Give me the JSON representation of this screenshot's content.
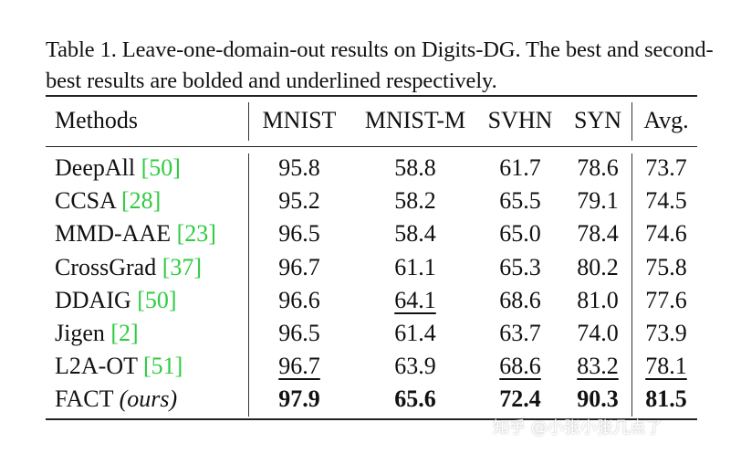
{
  "caption": "Table 1. Leave-one-domain-out results on Digits-DG. The best and second-best results are bolded and underlined respectively.",
  "table": {
    "headers": [
      "Methods",
      "MNIST",
      "MNIST-M",
      "SVHN",
      "SYN",
      "Avg."
    ],
    "rows": [
      {
        "method": "DeepAll",
        "cite": "[50]",
        "values": [
          "95.8",
          "58.8",
          "61.7",
          "78.6",
          "73.7"
        ],
        "styles": [
          "",
          "",
          "",
          "",
          ""
        ]
      },
      {
        "method": "CCSA",
        "cite": "[28]",
        "values": [
          "95.2",
          "58.2",
          "65.5",
          "79.1",
          "74.5"
        ],
        "styles": [
          "",
          "",
          "",
          "",
          ""
        ]
      },
      {
        "method": "MMD-AAE",
        "cite": "[23]",
        "values": [
          "96.5",
          "58.4",
          "65.0",
          "78.4",
          "74.6"
        ],
        "styles": [
          "",
          "",
          "",
          "",
          ""
        ]
      },
      {
        "method": "CrossGrad",
        "cite": "[37]",
        "values": [
          "96.7",
          "61.1",
          "65.3",
          "80.2",
          "75.8"
        ],
        "styles": [
          "",
          "",
          "",
          "",
          ""
        ]
      },
      {
        "method": "DDAIG",
        "cite": "[50]",
        "values": [
          "96.6",
          "64.1",
          "68.6",
          "81.0",
          "77.6"
        ],
        "styles": [
          "",
          "u",
          "",
          "",
          ""
        ]
      },
      {
        "method": "Jigen",
        "cite": "[2]",
        "values": [
          "96.5",
          "61.4",
          "63.7",
          "74.0",
          "73.9"
        ],
        "styles": [
          "",
          "",
          "",
          "",
          ""
        ]
      },
      {
        "method": "L2A-OT",
        "cite": "[51]",
        "values": [
          "96.7",
          "63.9",
          "68.6",
          "83.2",
          "78.1"
        ],
        "styles": [
          "u",
          "",
          "u",
          "u",
          "u"
        ]
      },
      {
        "method": "FACT",
        "cite": "(ours)",
        "values": [
          "97.9",
          "65.6",
          "72.4",
          "90.3",
          "81.5"
        ],
        "styles": [
          "b",
          "b",
          "b",
          "b",
          "b"
        ]
      }
    ]
  },
  "watermark": "知乎 @小张小张几点了"
}
